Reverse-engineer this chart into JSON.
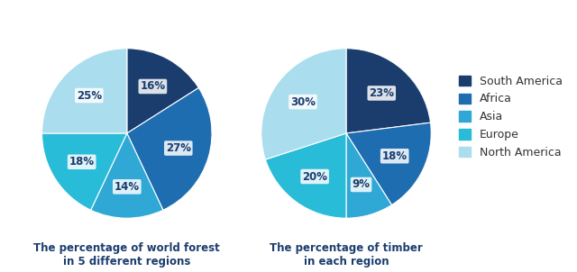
{
  "chart1_title": "The percentage of world forest\nin 5 different regions",
  "chart2_title": "The percentage of timber\nin each region",
  "regions": [
    "South America",
    "Africa",
    "Asia",
    "Europe",
    "North America"
  ],
  "colors": [
    "#1b3d6e",
    "#1e6db0",
    "#2fa8d5",
    "#29bcd8",
    "#aaddee"
  ],
  "chart1_values": [
    16,
    27,
    14,
    18,
    25
  ],
  "chart2_values": [
    23,
    18,
    9,
    20,
    30
  ],
  "chart1_labels": [
    "16%",
    "27%",
    "14%",
    "18%",
    "25%"
  ],
  "chart2_labels": [
    "23%",
    "18%",
    "9%",
    "20%",
    "30%"
  ],
  "background_color": "#ffffff",
  "title_fontsize": 8.5,
  "label_fontsize": 8.5,
  "legend_fontsize": 9,
  "label_text_color": "#1b3d6e"
}
